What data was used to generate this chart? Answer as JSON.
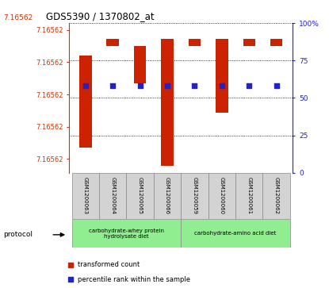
{
  "title": "GDS5390 / 1370802_at",
  "samples": [
    "GSM1200063",
    "GSM1200064",
    "GSM1200065",
    "GSM1200066",
    "GSM1200059",
    "GSM1200060",
    "GSM1200061",
    "GSM1200062"
  ],
  "bar_tops": [
    7.56,
    7.63,
    7.6,
    7.63,
    7.63,
    7.63,
    7.63,
    7.63
  ],
  "bar_bottoms": [
    7.16,
    7.6,
    7.44,
    7.08,
    7.6,
    7.31,
    7.6,
    7.6
  ],
  "percentile_values": [
    58,
    58,
    58,
    58,
    58,
    58,
    58,
    58
  ],
  "ylim_left": [
    7.05,
    7.7
  ],
  "ytick_positions": [
    7.11,
    7.25,
    7.39,
    7.53,
    7.67
  ],
  "ytick_label": "7.16562",
  "yticks_right": [
    0,
    25,
    50,
    75,
    100
  ],
  "group1_label": "carbohydrate-whey protein\nhydrolysate diet",
  "group2_label": "carbohydrate-amino acid diet",
  "group1_color": "#90EE90",
  "group2_color": "#90EE90",
  "bar_color": "#CC2200",
  "dot_color": "#2222CC",
  "protocol_label": "protocol",
  "legend_bar_label": "transformed count",
  "legend_dot_label": "percentile rank within the sample",
  "left_axis_color": "#CC3300",
  "right_axis_color": "#2222CC",
  "background_color": "#ffffff",
  "sample_box_color": "#d3d3d3",
  "top_label": "7.16562"
}
